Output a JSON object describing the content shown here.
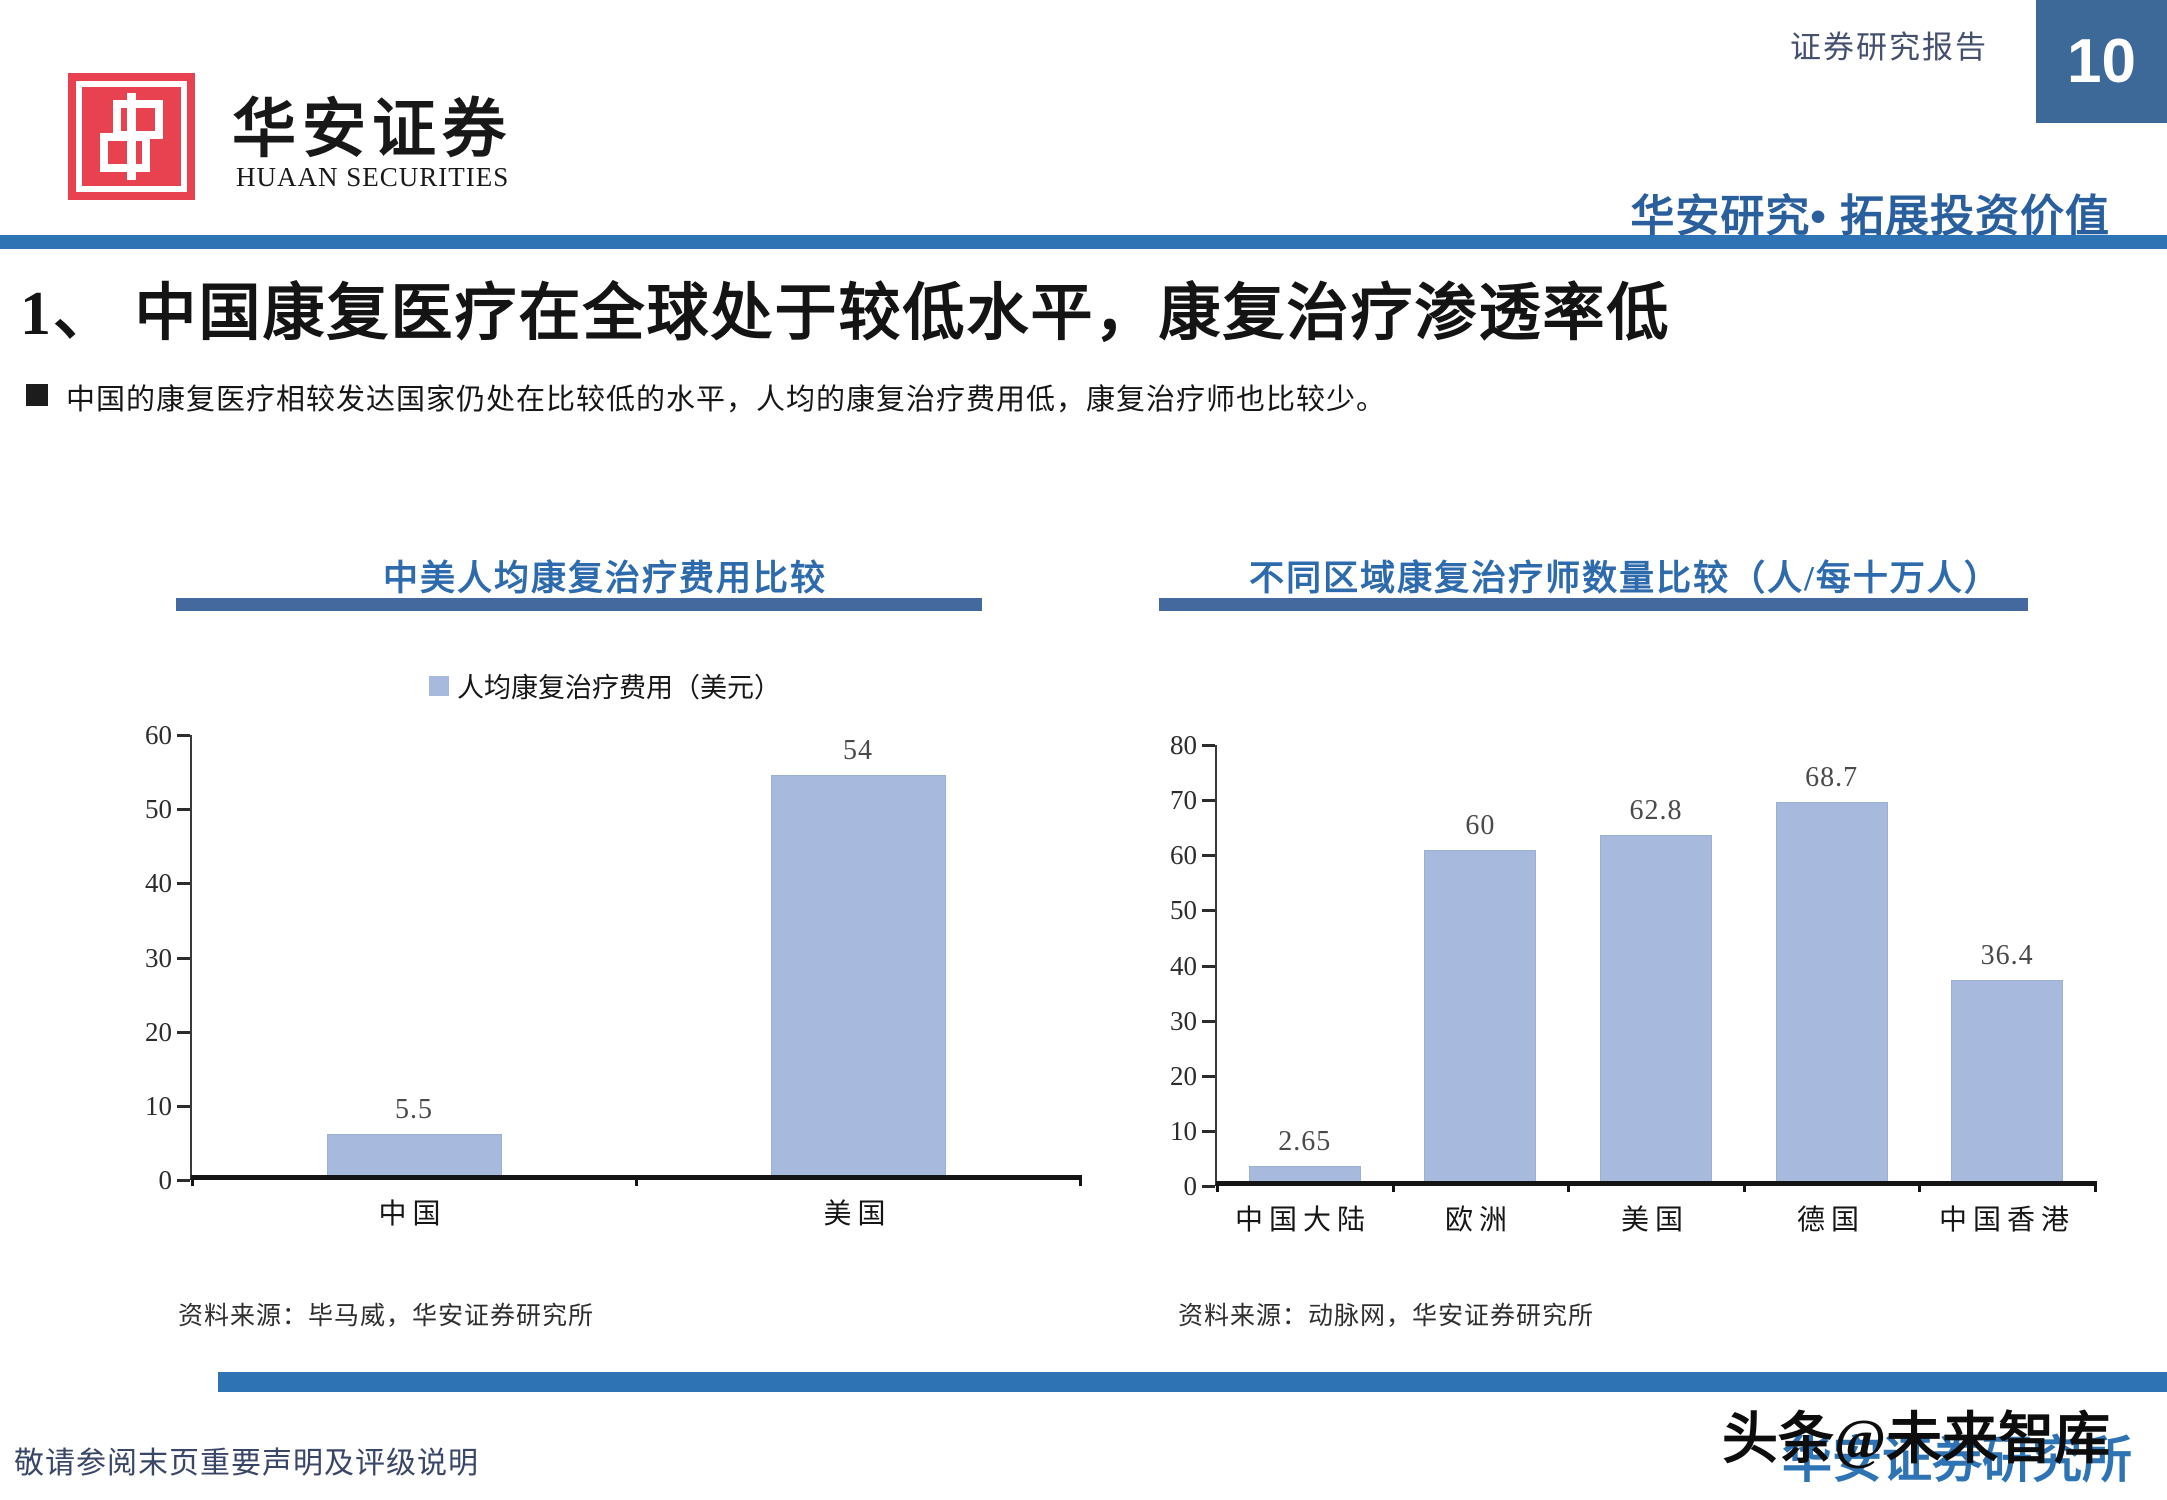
{
  "header": {
    "logo_cn": "华安证券",
    "logo_en": "HUAAN SECURITIES",
    "report_type": "证券研究报告",
    "page_number": "10",
    "slogan": "华安研究• 拓展投资价值"
  },
  "title": "1、 中国康复医疗在全球处于较低水平，康复治疗渗透率低",
  "bullet": "中国的康复医疗相较发达国家仍处在比较低的水平，人均的康复治疗费用低，康复治疗师也比较少。",
  "chart_data": [
    {
      "type": "bar",
      "title": "中美人均康复治疗费用比较",
      "legend": "人均康复治疗费用（美元）",
      "categories": [
        "中国",
        "美国"
      ],
      "values": [
        5.5,
        54
      ],
      "value_labels": [
        "5.5",
        "54"
      ],
      "ylim": [
        0,
        60
      ],
      "ytick_step": 10,
      "grid": false,
      "bar_color": "#a7b9dc",
      "source": "资料来源：毕马威，华安证券研究所"
    },
    {
      "type": "bar",
      "title": "不同区域康复治疗师数量比较（人/每十万人）",
      "legend": "",
      "categories": [
        "中国大陆",
        "欧洲",
        "美国",
        "德国",
        "中国香港"
      ],
      "values": [
        2.65,
        60,
        62.8,
        68.7,
        36.4
      ],
      "value_labels": [
        "2.65",
        "60",
        "62.8",
        "68.7",
        "36.4"
      ],
      "ylim": [
        0,
        80
      ],
      "ytick_step": 10,
      "grid": false,
      "bar_color": "#a7b9dc",
      "source": "资料来源：动脉网，华安证券研究所"
    }
  ],
  "footer": {
    "disclaimer": "敬请参阅末页重要声明及评级说明",
    "brand": "华安证券研究所",
    "watermark": "头条@未来智库"
  },
  "colors": {
    "accent_blue": "#2e74b5",
    "underline_blue": "#44699e",
    "page_box_blue": "#3d6998",
    "slogan_blue": "#2a5f9e",
    "chart_title_blue": "#2d6bad",
    "bar_fill": "#a7b9dc",
    "logo_red": "#e8414f",
    "axis_dark": "#141414"
  }
}
